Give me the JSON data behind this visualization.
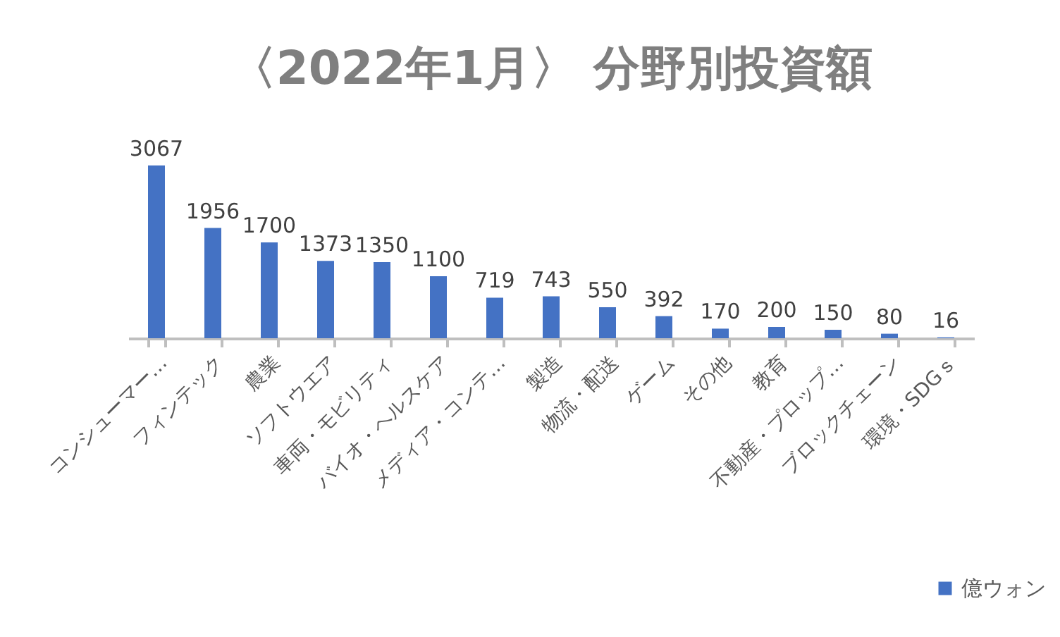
{
  "chart_data": {
    "type": "bar",
    "title": "〈2022年1月〉 分野別投資額",
    "categories": [
      "コンシューマー…",
      "フィンテック",
      "農業",
      "ソフトウエア",
      "車両・モビリティ",
      "バイオ・ヘルスケア",
      "メディア・コンテ…",
      "製造",
      "物流・配送",
      "ゲーム",
      "その他",
      "教育",
      "不動産・プロップ…",
      "ブロックチェーン",
      "環境・SDGｓ"
    ],
    "series": [
      {
        "name": "億ウォン",
        "color": "#4472c4",
        "values": [
          3067,
          1956,
          1700,
          1373,
          1350,
          1100,
          719,
          743,
          550,
          392,
          170,
          200,
          150,
          80,
          16
        ]
      }
    ],
    "data_labels": true,
    "legend": "bottom right"
  }
}
